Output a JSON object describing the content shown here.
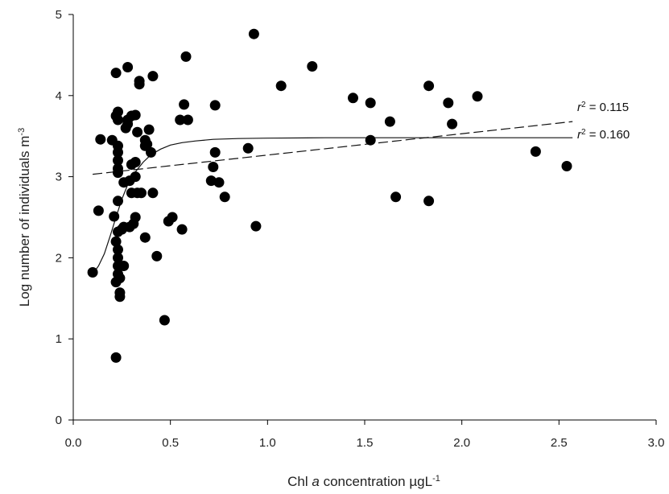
{
  "chart_data": {
    "type": "scatter",
    "xlabel": {
      "prefix": "Chl ",
      "italic": "a",
      "rest": " concentration µgL",
      "sup": "-1"
    },
    "ylabel": {
      "main": "Log number of individuals m",
      "sup": "-3"
    },
    "xlim": [
      0.0,
      3.0
    ],
    "ylim": [
      0,
      5
    ],
    "xticks": [
      "0.0",
      "0.5",
      "1.0",
      "1.5",
      "2.0",
      "2.5",
      "3.0"
    ],
    "yticks": [
      "0",
      "1",
      "2",
      "3",
      "4",
      "5"
    ],
    "grid": false,
    "marker_color": "#000000",
    "points": [
      {
        "x": 0.1,
        "y": 1.82
      },
      {
        "x": 0.13,
        "y": 2.58
      },
      {
        "x": 0.14,
        "y": 3.46
      },
      {
        "x": 0.2,
        "y": 3.45
      },
      {
        "x": 0.21,
        "y": 2.51
      },
      {
        "x": 0.22,
        "y": 4.28
      },
      {
        "x": 0.22,
        "y": 3.75
      },
      {
        "x": 0.22,
        "y": 2.2
      },
      {
        "x": 0.22,
        "y": 1.7
      },
      {
        "x": 0.22,
        "y": 0.77
      },
      {
        "x": 0.23,
        "y": 3.8
      },
      {
        "x": 0.23,
        "y": 3.7
      },
      {
        "x": 0.23,
        "y": 3.38
      },
      {
        "x": 0.23,
        "y": 3.3
      },
      {
        "x": 0.23,
        "y": 3.2
      },
      {
        "x": 0.23,
        "y": 3.1
      },
      {
        "x": 0.23,
        "y": 3.05
      },
      {
        "x": 0.23,
        "y": 2.7
      },
      {
        "x": 0.23,
        "y": 2.32
      },
      {
        "x": 0.23,
        "y": 2.1
      },
      {
        "x": 0.23,
        "y": 2.0
      },
      {
        "x": 0.23,
        "y": 1.9
      },
      {
        "x": 0.23,
        "y": 1.8
      },
      {
        "x": 0.24,
        "y": 1.75
      },
      {
        "x": 0.24,
        "y": 1.57
      },
      {
        "x": 0.24,
        "y": 1.52
      },
      {
        "x": 0.25,
        "y": 2.35
      },
      {
        "x": 0.26,
        "y": 2.93
      },
      {
        "x": 0.26,
        "y": 2.38
      },
      {
        "x": 0.26,
        "y": 1.9
      },
      {
        "x": 0.27,
        "y": 3.6
      },
      {
        "x": 0.28,
        "y": 4.35
      },
      {
        "x": 0.28,
        "y": 3.7
      },
      {
        "x": 0.28,
        "y": 3.65
      },
      {
        "x": 0.29,
        "y": 2.95
      },
      {
        "x": 0.29,
        "y": 2.38
      },
      {
        "x": 0.3,
        "y": 3.75
      },
      {
        "x": 0.3,
        "y": 3.15
      },
      {
        "x": 0.3,
        "y": 2.8
      },
      {
        "x": 0.31,
        "y": 2.42
      },
      {
        "x": 0.32,
        "y": 3.76
      },
      {
        "x": 0.32,
        "y": 3.18
      },
      {
        "x": 0.32,
        "y": 3.0
      },
      {
        "x": 0.32,
        "y": 2.5
      },
      {
        "x": 0.33,
        "y": 3.55
      },
      {
        "x": 0.33,
        "y": 2.8
      },
      {
        "x": 0.34,
        "y": 4.18
      },
      {
        "x": 0.34,
        "y": 4.14
      },
      {
        "x": 0.35,
        "y": 2.8
      },
      {
        "x": 0.37,
        "y": 3.45
      },
      {
        "x": 0.37,
        "y": 3.38
      },
      {
        "x": 0.37,
        "y": 2.25
      },
      {
        "x": 0.38,
        "y": 3.4
      },
      {
        "x": 0.39,
        "y": 3.58
      },
      {
        "x": 0.4,
        "y": 3.3
      },
      {
        "x": 0.41,
        "y": 4.24
      },
      {
        "x": 0.41,
        "y": 2.8
      },
      {
        "x": 0.43,
        "y": 2.02
      },
      {
        "x": 0.47,
        "y": 1.23
      },
      {
        "x": 0.49,
        "y": 2.45
      },
      {
        "x": 0.51,
        "y": 2.5
      },
      {
        "x": 0.55,
        "y": 3.7
      },
      {
        "x": 0.56,
        "y": 2.35
      },
      {
        "x": 0.57,
        "y": 3.89
      },
      {
        "x": 0.58,
        "y": 4.48
      },
      {
        "x": 0.59,
        "y": 3.7
      },
      {
        "x": 0.71,
        "y": 2.95
      },
      {
        "x": 0.72,
        "y": 3.12
      },
      {
        "x": 0.73,
        "y": 3.88
      },
      {
        "x": 0.73,
        "y": 3.3
      },
      {
        "x": 0.75,
        "y": 2.93
      },
      {
        "x": 0.78,
        "y": 2.75
      },
      {
        "x": 0.9,
        "y": 3.35
      },
      {
        "x": 0.93,
        "y": 4.76
      },
      {
        "x": 0.94,
        "y": 2.39
      },
      {
        "x": 1.07,
        "y": 4.12
      },
      {
        "x": 1.23,
        "y": 4.36
      },
      {
        "x": 1.44,
        "y": 3.97
      },
      {
        "x": 1.53,
        "y": 3.91
      },
      {
        "x": 1.53,
        "y": 3.45
      },
      {
        "x": 1.63,
        "y": 3.68
      },
      {
        "x": 1.66,
        "y": 2.75
      },
      {
        "x": 1.83,
        "y": 4.12
      },
      {
        "x": 1.83,
        "y": 2.7
      },
      {
        "x": 1.93,
        "y": 3.91
      },
      {
        "x": 1.95,
        "y": 3.65
      },
      {
        "x": 2.08,
        "y": 3.99
      },
      {
        "x": 2.38,
        "y": 3.31
      },
      {
        "x": 2.54,
        "y": 3.13
      }
    ],
    "fits": [
      {
        "style": "dashed",
        "r2_label": "r",
        "r2_value": " = 0.115",
        "x": [
          0.1,
          2.57
        ],
        "y": [
          3.03,
          3.68
        ]
      },
      {
        "style": "solid",
        "r2_label": "r",
        "r2_value": " = 0.160",
        "x": [
          0.1,
          0.13,
          0.16,
          0.19,
          0.22,
          0.25,
          0.28,
          0.32,
          0.36,
          0.4,
          0.45,
          0.5,
          0.56,
          0.63,
          0.72,
          0.85,
          1.0,
          1.3,
          1.8,
          2.57
        ],
        "y": [
          1.8,
          1.9,
          2.05,
          2.27,
          2.5,
          2.72,
          2.9,
          3.06,
          3.18,
          3.27,
          3.34,
          3.39,
          3.42,
          3.44,
          3.46,
          3.47,
          3.475,
          3.48,
          3.48,
          3.48
        ]
      }
    ]
  }
}
